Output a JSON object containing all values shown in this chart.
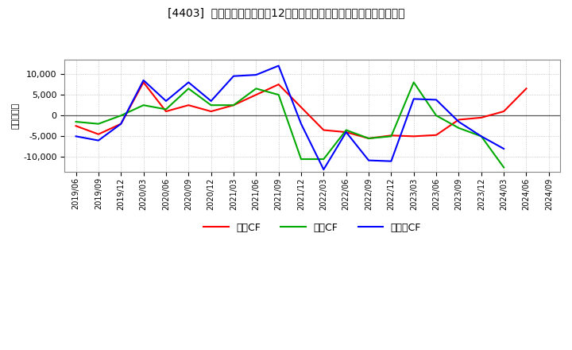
{
  "title": "[4403]  キャッシュフローの12か月移動合計の対前年同期増減額の推移",
  "ylabel": "（百万円）",
  "x_labels": [
    "2019/06",
    "2019/09",
    "2019/12",
    "2020/03",
    "2020/06",
    "2020/09",
    "2020/12",
    "2021/03",
    "2021/06",
    "2021/09",
    "2021/12",
    "2022/03",
    "2022/06",
    "2022/09",
    "2022/12",
    "2023/03",
    "2023/06",
    "2023/09",
    "2023/12",
    "2024/03",
    "2024/06",
    "2024/09"
  ],
  "operating_cf": [
    -2500,
    -4500,
    -2000,
    8000,
    1000,
    2500,
    1000,
    2500,
    5000,
    7500,
    null,
    -3500,
    -4000,
    -5500,
    -4800,
    -5000,
    -4700,
    -1000,
    -500,
    1000,
    6500,
    null
  ],
  "invest_cf": [
    -1500,
    -2000,
    0,
    2500,
    1500,
    6500,
    2500,
    2500,
    6500,
    5000,
    -10500,
    -10500,
    -3500,
    -5500,
    -5000,
    8000,
    0,
    -3000,
    -5000,
    -12500,
    null,
    null
  ],
  "free_cf": [
    -5000,
    -6000,
    -2000,
    8500,
    3500,
    8000,
    3500,
    9500,
    9800,
    12000,
    -2000,
    -13000,
    -4000,
    -10800,
    -11000,
    4000,
    3800,
    -1500,
    -5000,
    -8000,
    null,
    null
  ],
  "operating_color": "#ff0000",
  "invest_color": "#00aa00",
  "free_color": "#0000ff",
  "bg_color": "#ffffff",
  "plot_bg_color": "#ffffff",
  "grid_color": "#aaaaaa",
  "ylim": [
    -13500,
    13500
  ],
  "yticks": [
    -10000,
    -5000,
    0,
    5000,
    10000
  ],
  "legend_labels": [
    "営業CF",
    "投資CF",
    "フリーCF"
  ]
}
